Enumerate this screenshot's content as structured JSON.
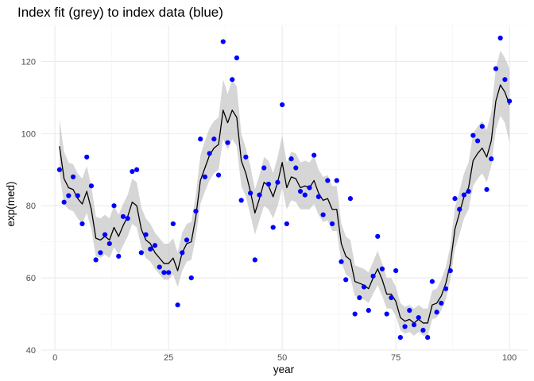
{
  "chart_data": {
    "type": "line",
    "title": "Index fit (grey) to index data (blue)",
    "xlabel": "year",
    "ylabel": "exp(med)",
    "xlim": [
      -3,
      104
    ],
    "ylim": [
      40,
      130
    ],
    "x_ticks": [
      0,
      25,
      50,
      75,
      100
    ],
    "y_ticks": [
      40,
      60,
      80,
      100,
      120
    ],
    "x_tick_labels": [
      "0",
      "25",
      "50",
      "75",
      "100"
    ],
    "y_tick_labels": [
      "40",
      "60",
      "80",
      "100",
      "120"
    ],
    "grid": true,
    "legend": "none",
    "colors": {
      "points": "#0000ff",
      "fit_line": "#000000",
      "band": "#bdbdbd"
    },
    "series": [
      {
        "name": "index data",
        "kind": "points",
        "x": [
          1,
          2,
          3,
          4,
          5,
          6,
          7,
          8,
          9,
          10,
          11,
          12,
          13,
          14,
          15,
          16,
          17,
          18,
          19,
          20,
          21,
          22,
          23,
          24,
          25,
          26,
          27,
          28,
          29,
          30,
          31,
          32,
          33,
          34,
          35,
          36,
          37,
          38,
          39,
          40,
          41,
          42,
          43,
          44,
          45,
          46,
          47,
          48,
          49,
          50,
          51,
          52,
          53,
          54,
          55,
          56,
          57,
          58,
          59,
          60,
          61,
          62,
          63,
          64,
          65,
          66,
          67,
          68,
          69,
          70,
          71,
          72,
          73,
          74,
          75,
          76,
          77,
          78,
          79,
          80,
          81,
          82,
          83,
          84,
          85,
          86,
          87,
          88,
          89,
          90,
          91,
          92,
          93,
          94,
          95,
          96,
          97,
          98,
          99,
          100
        ],
        "y": [
          90,
          81,
          82.8,
          88,
          82.8,
          75,
          93.5,
          85.5,
          65,
          67,
          72,
          69.5,
          80,
          66,
          77,
          76.5,
          89.5,
          90,
          67,
          72,
          68,
          69,
          63,
          61.5,
          61.5,
          75,
          52.5,
          67,
          70.5,
          60,
          78.5,
          98.5,
          88,
          94.5,
          98.5,
          88.5,
          125.5,
          97.5,
          115,
          121,
          81.5,
          93.5,
          83.5,
          65,
          83,
          90.5,
          86,
          74,
          86.5,
          108,
          75,
          93,
          90.5,
          84,
          83,
          85,
          94,
          82.5,
          77.5,
          87,
          75,
          87,
          64.5,
          59.5,
          82,
          50,
          54.5,
          57.5,
          51,
          60.5,
          71.5,
          62.5,
          50,
          54.5,
          62,
          43.5,
          46.5,
          51,
          47,
          49,
          45.5,
          43.5,
          59,
          50.5,
          53,
          57,
          62,
          82,
          79,
          83,
          84,
          99.5,
          98,
          102,
          84.5,
          93,
          118,
          126.5,
          115,
          109
        ]
      },
      {
        "name": "index fit",
        "kind": "line",
        "x": [
          1,
          2,
          3,
          4,
          5,
          6,
          7,
          8,
          9,
          10,
          11,
          12,
          13,
          14,
          15,
          16,
          17,
          18,
          19,
          20,
          21,
          22,
          23,
          24,
          25,
          26,
          27,
          28,
          29,
          30,
          31,
          32,
          33,
          34,
          35,
          36,
          37,
          38,
          39,
          40,
          41,
          42,
          43,
          44,
          45,
          46,
          47,
          48,
          49,
          50,
          51,
          52,
          53,
          54,
          55,
          56,
          57,
          58,
          59,
          60,
          61,
          62,
          63,
          64,
          65,
          66,
          67,
          68,
          69,
          70,
          71,
          72,
          73,
          74,
          75,
          76,
          77,
          78,
          79,
          80,
          81,
          82,
          83,
          84,
          85,
          86,
          87,
          88,
          89,
          90,
          91,
          92,
          93,
          94,
          95,
          96,
          97,
          98,
          99,
          100
        ],
        "y": [
          96.5,
          87.5,
          85,
          84.5,
          82,
          80.5,
          84,
          79,
          71,
          70.5,
          71.5,
          70.5,
          74,
          71.5,
          74.5,
          77,
          81,
          80,
          73.5,
          70.5,
          69.5,
          67,
          65.5,
          64,
          64,
          65.5,
          62,
          67,
          69.5,
          70,
          77,
          87,
          90.5,
          94,
          96,
          97,
          106.5,
          103,
          106.5,
          104.5,
          92.5,
          89,
          84,
          78,
          82,
          86.5,
          85.5,
          82.5,
          86.5,
          92,
          85,
          88,
          87.5,
          85,
          85.5,
          85,
          87,
          83.5,
          81.5,
          82,
          79,
          79,
          69.5,
          66,
          65,
          59,
          58.5,
          58,
          57,
          60,
          62.5,
          59.5,
          55.5,
          55.5,
          53.5,
          49,
          48,
          48.5,
          47.5,
          48.5,
          47.5,
          47.5,
          52.5,
          53,
          55,
          58.5,
          64,
          73.5,
          78,
          82.5,
          85,
          92.5,
          94.5,
          96,
          93.5,
          98,
          109,
          113.5,
          111.5,
          108
        ]
      },
      {
        "name": "fit interval",
        "kind": "band",
        "x": [
          1,
          2,
          3,
          4,
          5,
          6,
          7,
          8,
          9,
          10,
          11,
          12,
          13,
          14,
          15,
          16,
          17,
          18,
          19,
          20,
          21,
          22,
          23,
          24,
          25,
          26,
          27,
          28,
          29,
          30,
          31,
          32,
          33,
          34,
          35,
          36,
          37,
          38,
          39,
          40,
          41,
          42,
          43,
          44,
          45,
          46,
          47,
          48,
          49,
          50,
          51,
          52,
          53,
          54,
          55,
          56,
          57,
          58,
          59,
          60,
          61,
          62,
          63,
          64,
          65,
          66,
          67,
          68,
          69,
          70,
          71,
          72,
          73,
          74,
          75,
          76,
          77,
          78,
          79,
          80,
          81,
          82,
          83,
          84,
          85,
          86,
          87,
          88,
          89,
          90,
          91,
          92,
          93,
          94,
          95,
          96,
          97,
          98,
          99,
          100
        ],
        "lower": [
          89,
          80.5,
          79,
          78.5,
          76.5,
          75,
          78,
          73.5,
          66,
          65.5,
          66.5,
          65.5,
          68.5,
          66.5,
          69,
          71.5,
          75,
          74,
          68.5,
          65.5,
          64.5,
          62.5,
          61,
          59.5,
          59.5,
          61,
          57.5,
          62,
          64.5,
          65,
          71.5,
          80.5,
          84,
          87,
          89,
          90,
          98.5,
          95.5,
          98.5,
          96.5,
          85.5,
          82.5,
          77.5,
          72,
          76,
          80,
          79,
          76.5,
          80,
          85,
          79,
          81.5,
          81,
          79,
          79,
          79,
          80.5,
          77.5,
          75.5,
          76,
          73,
          73,
          64.5,
          61,
          60,
          55,
          54.5,
          54,
          53,
          55.5,
          58,
          55,
          51.5,
          51.5,
          49.5,
          45.5,
          44.5,
          45,
          44,
          45,
          44,
          44,
          48.5,
          49,
          51,
          54,
          59.5,
          68,
          72,
          76.5,
          79,
          85.5,
          87.5,
          89,
          86.5,
          91,
          101,
          105,
          103,
          97.5
        ],
        "upper": [
          104,
          95,
          92,
          91.5,
          89,
          87.5,
          91,
          85.5,
          77,
          76.5,
          77.5,
          76.5,
          80,
          77.5,
          80.5,
          83,
          87.5,
          86.5,
          79.5,
          76.5,
          75,
          72.5,
          71,
          69.5,
          69.5,
          71,
          67,
          72.5,
          75,
          75.5,
          83,
          94,
          98,
          101.5,
          103.5,
          104.5,
          115,
          111,
          115,
          113,
          100,
          96,
          91,
          84.5,
          88.5,
          93.5,
          92.5,
          89,
          93.5,
          99.5,
          92,
          95,
          94.5,
          92,
          92.5,
          92,
          94,
          90,
          88,
          88.5,
          85.5,
          85.5,
          75,
          71.5,
          70.5,
          63.5,
          63,
          62.5,
          61.5,
          64.5,
          67.5,
          64,
          60,
          60,
          57.5,
          53,
          52,
          52.5,
          51.5,
          52.5,
          51.5,
          51.5,
          56.5,
          57,
          59.5,
          63,
          69,
          79.5,
          84,
          89,
          92,
          100,
          102,
          103.5,
          101,
          106,
          118,
          123,
          121,
          118
        ]
      }
    ]
  }
}
